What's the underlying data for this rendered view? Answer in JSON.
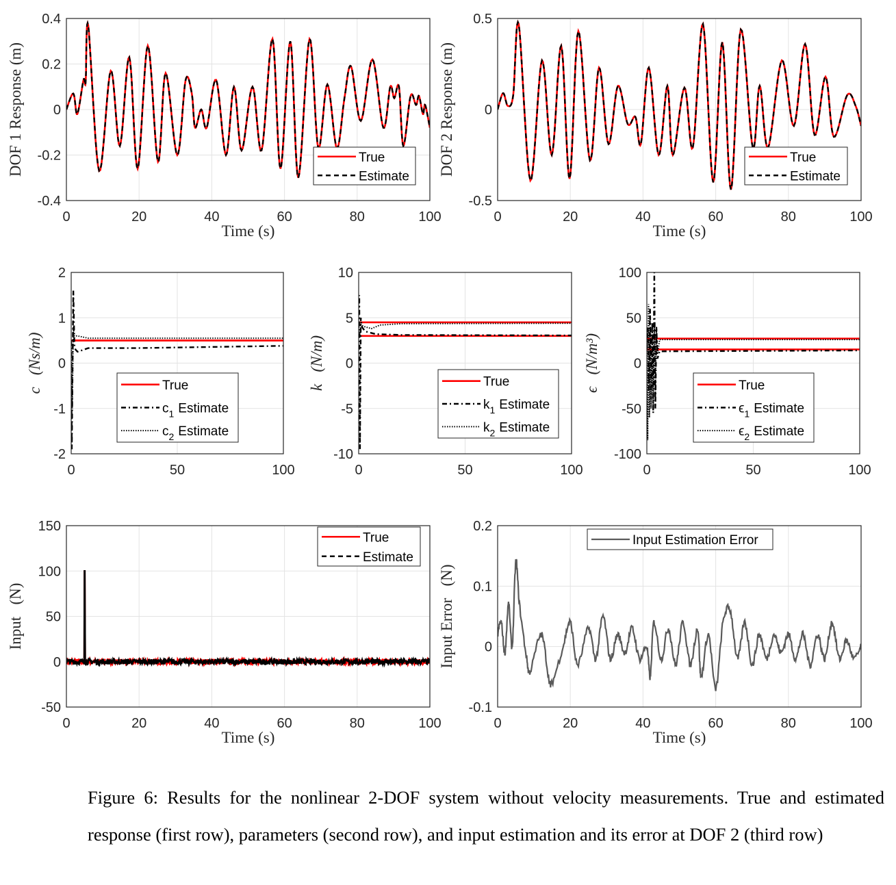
{
  "colors": {
    "true": "#ff0000",
    "estimate": "#000000",
    "error": "#5a5a5a",
    "grid": "#e3e3e3",
    "axis": "#262626"
  },
  "chart_data": [
    {
      "id": "dof1",
      "type": "line",
      "xlabel": "Time (s)",
      "ylabel": "DOF 1 Response (m)",
      "xlim": [
        0,
        100
      ],
      "ylim": [
        -0.4,
        0.4
      ],
      "xticks": [
        "0",
        "20",
        "40",
        "60",
        "80",
        "100"
      ],
      "yticks": [
        "-0.4",
        "-0.2",
        "0",
        "0.2",
        "0.4"
      ],
      "grid": true,
      "legend_placement": "bottom-right",
      "legend": [
        "True",
        "Estimate"
      ],
      "series": [
        {
          "name": "True",
          "style": "solid-red"
        },
        {
          "name": "Estimate",
          "style": "dashed-black"
        }
      ],
      "points": [
        [
          0,
          0
        ],
        [
          1.9,
          0.07
        ],
        [
          3,
          -0.02
        ],
        [
          4.7,
          0.13
        ],
        [
          5.3,
          0.12
        ],
        [
          6,
          0.37
        ],
        [
          9,
          -0.27
        ],
        [
          12.2,
          0.17
        ],
        [
          14.7,
          -0.16
        ],
        [
          17.3,
          0.23
        ],
        [
          19.6,
          -0.26
        ],
        [
          22.4,
          0.28
        ],
        [
          25.2,
          -0.23
        ],
        [
          27.3,
          0.16
        ],
        [
          30.5,
          -0.2
        ],
        [
          32.8,
          0.13
        ],
        [
          34.5,
          0.07
        ],
        [
          35.4,
          -0.08
        ],
        [
          37.1,
          0
        ],
        [
          38.6,
          -0.08
        ],
        [
          41.2,
          0.13
        ],
        [
          43.9,
          -0.2
        ],
        [
          46.1,
          0.1
        ],
        [
          48.2,
          -0.18
        ],
        [
          51.2,
          0.1
        ],
        [
          53.7,
          -0.18
        ],
        [
          56.7,
          0.31
        ],
        [
          58.9,
          -0.26
        ],
        [
          61.6,
          0.3
        ],
        [
          63.8,
          -0.3
        ],
        [
          66.9,
          0.31
        ],
        [
          69.3,
          -0.17
        ],
        [
          71.8,
          0.11
        ],
        [
          74.4,
          -0.17
        ],
        [
          76.5,
          0.05
        ],
        [
          78.3,
          0.19
        ],
        [
          81,
          -0.05
        ],
        [
          84.2,
          0.22
        ],
        [
          87.2,
          -0.08
        ],
        [
          89.1,
          0.1
        ],
        [
          90.2,
          0.05
        ],
        [
          91.5,
          0.1
        ],
        [
          92.7,
          -0.16
        ],
        [
          94.7,
          0.06
        ],
        [
          96.2,
          0.02
        ],
        [
          97,
          0.06
        ],
        [
          98.1,
          -0.02
        ],
        [
          98.7,
          0.02
        ],
        [
          100,
          -0.08
        ]
      ]
    },
    {
      "id": "dof2",
      "type": "line",
      "xlabel": "Time (s)",
      "ylabel": "DOF 2 Response (m)",
      "xlim": [
        0,
        100
      ],
      "ylim": [
        -0.5,
        0.5
      ],
      "xticks": [
        "0",
        "20",
        "40",
        "60",
        "80",
        "100"
      ],
      "yticks": [
        "-0.5",
        "0",
        "0.5"
      ],
      "grid": true,
      "legend_placement": "bottom-right",
      "legend": [
        "True",
        "Estimate"
      ],
      "series": [
        {
          "name": "True",
          "style": "solid-red"
        },
        {
          "name": "Estimate",
          "style": "dashed-black"
        }
      ],
      "points": [
        [
          0,
          0
        ],
        [
          1.5,
          0.09
        ],
        [
          2.8,
          0.02
        ],
        [
          4.3,
          0.08
        ],
        [
          5.8,
          0.47
        ],
        [
          9,
          -0.39
        ],
        [
          12.2,
          0.27
        ],
        [
          14.9,
          -0.25
        ],
        [
          17.5,
          0.35
        ],
        [
          19.8,
          -0.38
        ],
        [
          22.2,
          0.43
        ],
        [
          25.4,
          -0.28
        ],
        [
          27.9,
          0.23
        ],
        [
          30.5,
          -0.19
        ],
        [
          33.1,
          0.13
        ],
        [
          35.8,
          -0.08
        ],
        [
          37.9,
          -0.04
        ],
        [
          39.4,
          -0.19
        ],
        [
          41.6,
          0.23
        ],
        [
          44.3,
          -0.25
        ],
        [
          46.7,
          0.13
        ],
        [
          48.2,
          -0.25
        ],
        [
          51.4,
          0.12
        ],
        [
          53.7,
          -0.21
        ],
        [
          56.5,
          0.47
        ],
        [
          59.3,
          -0.4
        ],
        [
          61.8,
          0.37
        ],
        [
          64.2,
          -0.44
        ],
        [
          66.9,
          0.44
        ],
        [
          70.2,
          -0.21
        ],
        [
          72.1,
          0.13
        ],
        [
          74.4,
          -0.21
        ],
        [
          78.2,
          0.27
        ],
        [
          81.5,
          -0.09
        ],
        [
          84.6,
          0.36
        ],
        [
          87.2,
          -0.14
        ],
        [
          90.2,
          0.18
        ],
        [
          92.5,
          -0.15
        ],
        [
          96.2,
          0.08
        ],
        [
          98.5,
          0.02
        ],
        [
          100,
          -0.09
        ]
      ]
    },
    {
      "id": "c",
      "type": "line",
      "xlabel": "",
      "ylabel": "c   (Ns/m)",
      "xlim": [
        0,
        100
      ],
      "ylim": [
        -2,
        2
      ],
      "xticks": [
        "0",
        "50",
        "100"
      ],
      "yticks": [
        "-2",
        "-1",
        "0",
        "1",
        "2"
      ],
      "grid": true,
      "legend_placement": "bottom-right",
      "legend": [
        "True",
        "c",
        "Estimate"
      ],
      "legend_subs": [
        "1",
        "2"
      ],
      "true_values": [
        0.5,
        0.5
      ],
      "series": [
        {
          "name": "c1 Estimate",
          "style": "dashdot-black",
          "points": [
            [
              0,
              0.5
            ],
            [
              0.3,
              -1.9
            ],
            [
              1,
              1.6
            ],
            [
              1.5,
              0.4
            ],
            [
              2,
              0.3
            ],
            [
              3,
              0.25
            ],
            [
              5,
              0.28
            ],
            [
              8,
              0.33
            ],
            [
              30,
              0.33
            ],
            [
              100,
              0.38
            ]
          ]
        },
        {
          "name": "c2 Estimate",
          "style": "dotted-black",
          "points": [
            [
              0,
              0.5
            ],
            [
              0.5,
              -1
            ],
            [
              1,
              0.8
            ],
            [
              1.5,
              0.6
            ],
            [
              3,
              0.6
            ],
            [
              8,
              0.55
            ],
            [
              100,
              0.55
            ]
          ]
        }
      ]
    },
    {
      "id": "k",
      "type": "line",
      "xlabel": "",
      "ylabel": "k   (N/m)",
      "xlim": [
        0,
        100
      ],
      "ylim": [
        -10,
        10
      ],
      "xticks": [
        "0",
        "50",
        "100"
      ],
      "yticks": [
        "-10",
        "-5",
        "0",
        "5",
        "10"
      ],
      "grid": true,
      "legend_placement": "bottom-right",
      "legend": [
        "True",
        "k",
        "Estimate"
      ],
      "legend_subs": [
        "1",
        "2"
      ],
      "true_values": [
        4.5,
        3.0
      ],
      "series": [
        {
          "name": "k1 Estimate",
          "style": "dashdot-black",
          "points": [
            [
              0,
              4
            ],
            [
              0.3,
              7.5
            ],
            [
              0.6,
              -9.5
            ],
            [
              1,
              5
            ],
            [
              1.5,
              4
            ],
            [
              3,
              3.5
            ],
            [
              8,
              3.2
            ],
            [
              20,
              3.1
            ],
            [
              100,
              3.05
            ]
          ]
        },
        {
          "name": "k2 Estimate",
          "style": "dotted-black",
          "points": [
            [
              0,
              4
            ],
            [
              0.5,
              3
            ],
            [
              1,
              4.2
            ],
            [
              3,
              4
            ],
            [
              6,
              3.8
            ],
            [
              10,
              4.2
            ],
            [
              20,
              4.35
            ],
            [
              100,
              4.4
            ]
          ]
        }
      ]
    },
    {
      "id": "eps",
      "type": "line",
      "xlabel": "",
      "ylabel": "ϵ   (N/m³)",
      "xlim": [
        0,
        100
      ],
      "ylim": [
        -100,
        100
      ],
      "xticks": [
        "0",
        "50",
        "100"
      ],
      "yticks": [
        "-100",
        "-50",
        "0",
        "50",
        "100"
      ],
      "grid": true,
      "legend_placement": "bottom-right",
      "legend": [
        "True",
        "ϵ",
        "Estimate"
      ],
      "legend_subs": [
        "1",
        "2"
      ],
      "true_values": [
        27,
        15
      ],
      "series": [
        {
          "name": "ϵ1 Estimate",
          "style": "dashdot-black",
          "points": [
            [
              0,
              15
            ],
            [
              0.5,
              40
            ],
            [
              1,
              -30
            ],
            [
              1.5,
              60
            ],
            [
              2,
              -40
            ],
            [
              2.5,
              45
            ],
            [
              3,
              -55
            ],
            [
              3.5,
              100
            ],
            [
              4,
              -50
            ],
            [
              4.5,
              40
            ],
            [
              5,
              5
            ],
            [
              6,
              13
            ],
            [
              100,
              14
            ]
          ]
        },
        {
          "name": "ϵ2 Estimate",
          "style": "dotted-black",
          "points": [
            [
              0,
              27
            ],
            [
              0.4,
              -85
            ],
            [
              0.8,
              65
            ],
            [
              1.2,
              -60
            ],
            [
              1.6,
              40
            ],
            [
              2,
              -50
            ],
            [
              2.5,
              35
            ],
            [
              3,
              -45
            ],
            [
              3.5,
              45
            ],
            [
              4,
              -40
            ],
            [
              4.5,
              40
            ],
            [
              5,
              10
            ],
            [
              6,
              26
            ],
            [
              100,
              26
            ]
          ]
        }
      ]
    },
    {
      "id": "input",
      "type": "line",
      "xlabel": "Time (s)",
      "ylabel": "Input   (N)",
      "xlim": [
        0,
        100
      ],
      "ylim": [
        -50,
        150
      ],
      "xticks": [
        "0",
        "20",
        "40",
        "60",
        "80",
        "100"
      ],
      "yticks": [
        "-50",
        "0",
        "50",
        "100",
        "150"
      ],
      "grid": true,
      "legend_placement": "top-right",
      "legend": [
        "True",
        "Estimate"
      ],
      "impulse": {
        "time": 5,
        "value": 100
      },
      "noise_amplitude": 3,
      "series": [
        {
          "name": "True",
          "style": "solid-red"
        },
        {
          "name": "Estimate",
          "style": "dashed-black"
        }
      ]
    },
    {
      "id": "error",
      "type": "line",
      "xlabel": "Time (s)",
      "ylabel": "Input Error   (N)",
      "xlim": [
        0,
        100
      ],
      "ylim": [
        -0.1,
        0.2
      ],
      "xticks": [
        "0",
        "20",
        "40",
        "60",
        "80",
        "100"
      ],
      "yticks": [
        "-0.1",
        "0",
        "0.1",
        "0.2"
      ],
      "grid": true,
      "legend_placement": "top-left",
      "legend": [
        "Input Estimation Error"
      ],
      "series": [
        {
          "name": "Input Estimation Error",
          "style": "solid-gray",
          "points": [
            [
              0,
              0.02
            ],
            [
              1,
              0.04
            ],
            [
              2,
              -0.01
            ],
            [
              3,
              0.07
            ],
            [
              4,
              0
            ],
            [
              5,
              0.14
            ],
            [
              6,
              0.07
            ],
            [
              8,
              -0.02
            ],
            [
              9,
              -0.04
            ],
            [
              12,
              0.02
            ],
            [
              14,
              -0.05
            ],
            [
              15,
              -0.06
            ],
            [
              18,
              0
            ],
            [
              20,
              0.04
            ],
            [
              22,
              -0.03
            ],
            [
              25,
              0.03
            ],
            [
              27,
              -0.02
            ],
            [
              29,
              0.05
            ],
            [
              31,
              -0.02
            ],
            [
              33,
              0.02
            ],
            [
              35,
              -0.01
            ],
            [
              37,
              0.03
            ],
            [
              39,
              -0.02
            ],
            [
              41,
              0
            ],
            [
              42,
              -0.05
            ],
            [
              43,
              0.04
            ],
            [
              45,
              -0.02
            ],
            [
              47,
              0.03
            ],
            [
              49,
              -0.03
            ],
            [
              51,
              0.04
            ],
            [
              53,
              -0.03
            ],
            [
              55,
              0.03
            ],
            [
              56,
              -0.05
            ],
            [
              58,
              0.02
            ],
            [
              60,
              -0.07
            ],
            [
              62,
              0.04
            ],
            [
              64,
              0.06
            ],
            [
              66,
              -0.02
            ],
            [
              68,
              0.04
            ],
            [
              70,
              -0.03
            ],
            [
              72,
              0.02
            ],
            [
              74,
              -0.02
            ],
            [
              76,
              0.02
            ],
            [
              78,
              -0.01
            ],
            [
              80,
              0.02
            ],
            [
              82,
              -0.02
            ],
            [
              84,
              0.02
            ],
            [
              86,
              -0.03
            ],
            [
              88,
              0.02
            ],
            [
              90,
              -0.02
            ],
            [
              92,
              0.04
            ],
            [
              94,
              -0.02
            ],
            [
              96,
              0.01
            ],
            [
              98,
              -0.02
            ],
            [
              100,
              0
            ]
          ]
        }
      ]
    }
  ],
  "caption": "Figure 6: Results for the nonlinear 2-DOF system without velocity measurements. True and estimated response (first row), parameters (second row), and input estimation and its error at DOF 2 (third row)"
}
